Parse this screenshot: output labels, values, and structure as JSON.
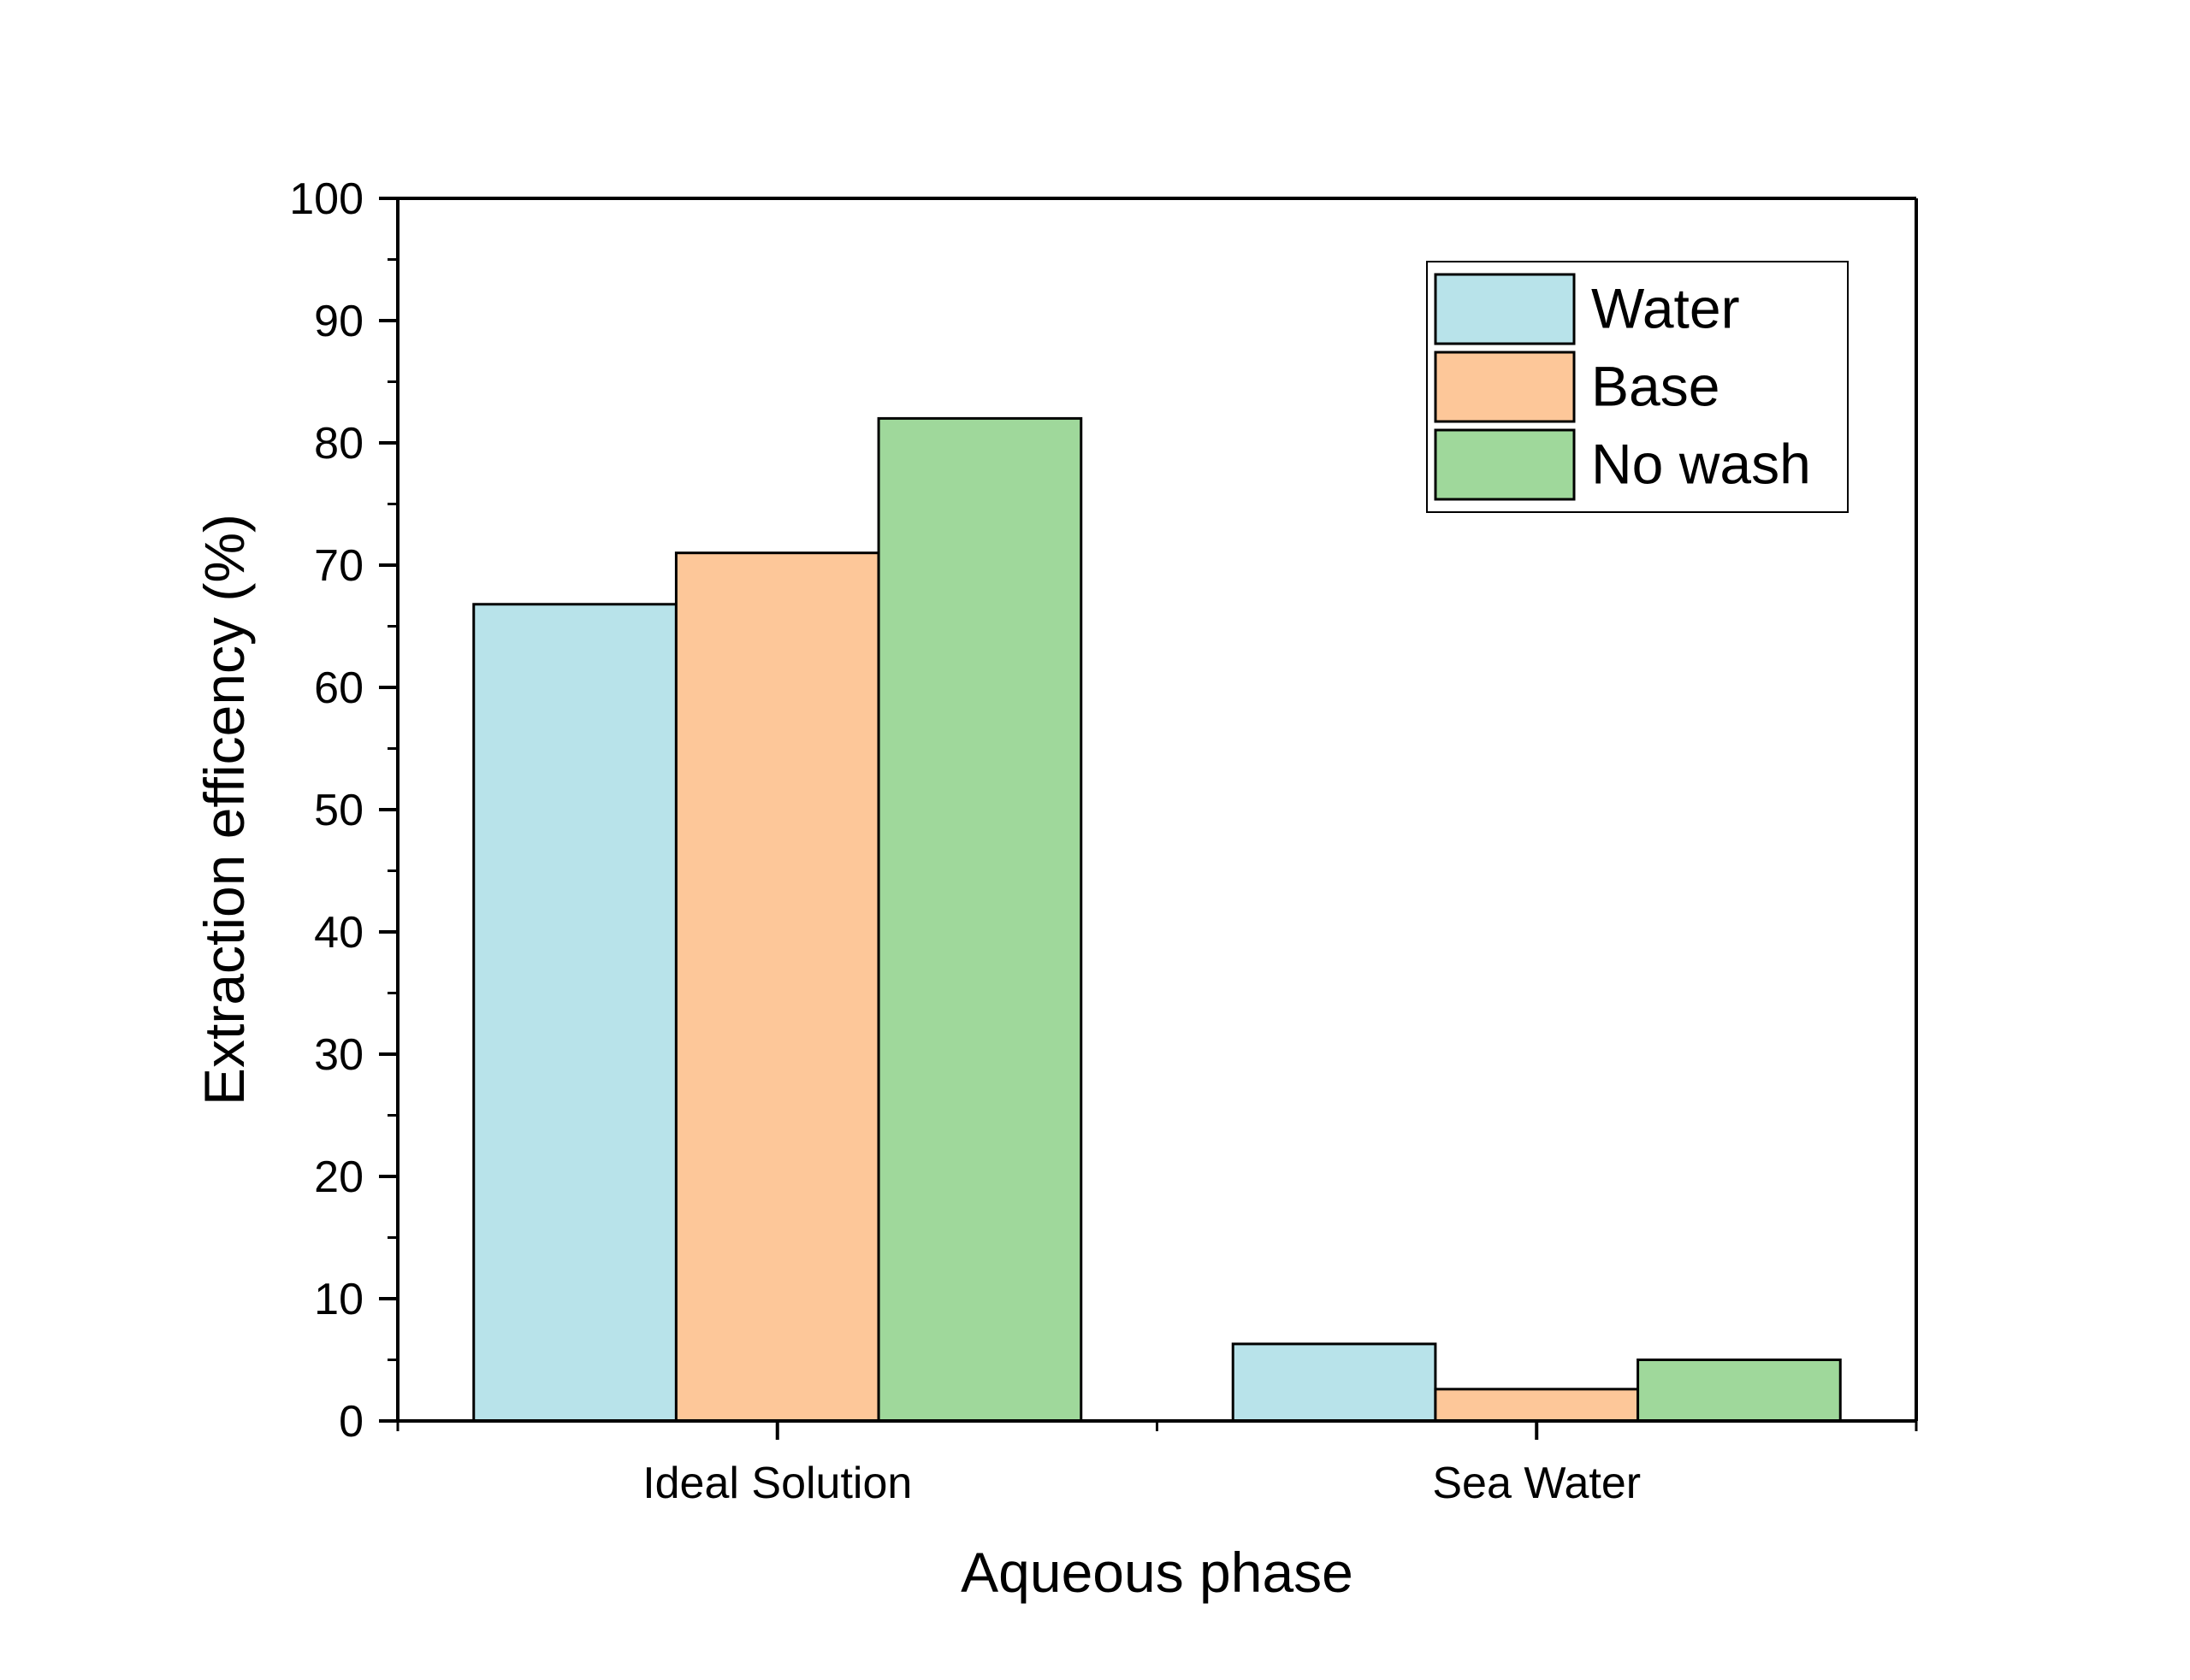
{
  "chart_data": {
    "type": "bar",
    "xlabel": "Aqueous phase",
    "ylabel": "Extraction efficency (%)",
    "categories": [
      "Ideal Solution",
      "Sea Water"
    ],
    "series": [
      {
        "name": "Water",
        "values": [
          66.8,
          6.3
        ],
        "color": "#b8e3ea"
      },
      {
        "name": "Base",
        "values": [
          71.0,
          2.6
        ],
        "color": "#fdc799"
      },
      {
        "name": "No wash",
        "values": [
          82.0,
          5.0
        ],
        "color": "#9fd89b"
      }
    ],
    "ylim": [
      0,
      100
    ],
    "yticks": [
      0,
      10,
      20,
      30,
      40,
      50,
      60,
      70,
      80,
      90,
      100
    ],
    "y_minor_step": 5,
    "grid": false,
    "legend_position": "top-right"
  }
}
